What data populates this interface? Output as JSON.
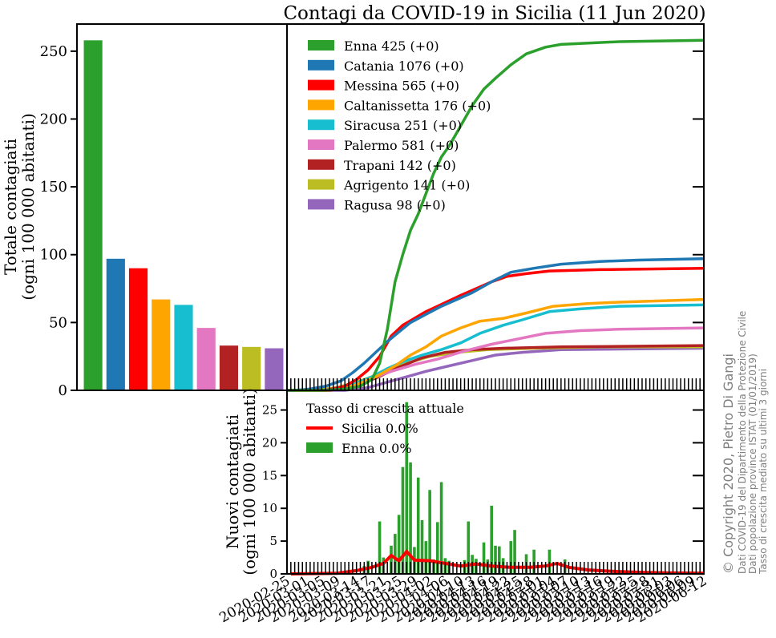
{
  "figure": {
    "title": "Contagi da COVID-19 in Sicilia (11 Jun 2020)",
    "ylabel_total_line1": "Totale contagiati",
    "ylabel_total_line2": "(ogni 100 000 abitanti)",
    "ylabel_new_line1": "Nuovi contagiati",
    "ylabel_new_line2": "(ogni 100 000 abitanti)",
    "rate_legend_title": "Tasso di crescita attuale",
    "copyright": "© Copyright 2020, Pietro Di Gangi",
    "notes": [
      "Dati COVID-19 del Dipartimento della Protezione Civile",
      "Dati popolazione province ISTAT (01/01/2019)",
      "Tasso di crescita mediato su ultimi 3 giorni"
    ]
  },
  "chart_data": [
    {
      "type": "bar",
      "title": "",
      "ylabel": "Totale contagiati (ogni 100 000 abitanti)",
      "ylim": [
        0,
        270
      ],
      "yticks": [
        0,
        50,
        100,
        150,
        200,
        250
      ],
      "categories": [
        "Enna",
        "Catania",
        "Messina",
        "Caltanissetta",
        "Siracusa",
        "Palermo",
        "Trapani",
        "Agrigento",
        "Ragusa"
      ],
      "values": [
        258,
        97,
        90,
        67,
        63,
        46,
        33,
        32,
        31
      ],
      "colors": [
        "#2ca02c",
        "#1f77b4",
        "#ff0000",
        "#ffa500",
        "#17becf",
        "#e377c2",
        "#b22222",
        "#bcbd22",
        "#9467bd"
      ]
    },
    {
      "type": "line",
      "title": "Contagi da COVID-19 in Sicilia (11 Jun 2020)",
      "ylim": [
        0,
        270
      ],
      "legend_position": "upper-left",
      "x_range": [
        "2020-02-24",
        "2020-06-11"
      ],
      "series": [
        {
          "name": "Enna",
          "label": "Enna   425 (+0)",
          "color": "#2ca02c",
          "points": [
            [
              "2020-03-04",
              0
            ],
            [
              "2020-03-10",
              1
            ],
            [
              "2020-03-14",
              3
            ],
            [
              "2020-03-17",
              8
            ],
            [
              "2020-03-19",
              20
            ],
            [
              "2020-03-21",
              45
            ],
            [
              "2020-03-23",
              80
            ],
            [
              "2020-03-25",
              100
            ],
            [
              "2020-03-27",
              118
            ],
            [
              "2020-03-29",
              130
            ],
            [
              "2020-03-31",
              145
            ],
            [
              "2020-04-02",
              160
            ],
            [
              "2020-04-04",
              172
            ],
            [
              "2020-04-06",
              180
            ],
            [
              "2020-04-08",
              190
            ],
            [
              "2020-04-10",
              200
            ],
            [
              "2020-04-12",
              210
            ],
            [
              "2020-04-15",
              222
            ],
            [
              "2020-04-18",
              230
            ],
            [
              "2020-04-22",
              240
            ],
            [
              "2020-04-26",
              248
            ],
            [
              "2020-05-01",
              253
            ],
            [
              "2020-05-05",
              255
            ],
            [
              "2020-05-20",
              257
            ],
            [
              "2020-06-11",
              258
            ]
          ]
        },
        {
          "name": "Catania",
          "label": "Catania   1076 (+0)",
          "color": "#1f77b4",
          "points": [
            [
              "2020-02-26",
              0
            ],
            [
              "2020-03-01",
              1
            ],
            [
              "2020-03-05",
              3
            ],
            [
              "2020-03-09",
              7
            ],
            [
              "2020-03-12",
              13
            ],
            [
              "2020-03-15",
              20
            ],
            [
              "2020-03-18",
              28
            ],
            [
              "2020-03-21",
              36
            ],
            [
              "2020-03-24",
              43
            ],
            [
              "2020-03-27",
              50
            ],
            [
              "2020-03-31",
              56
            ],
            [
              "2020-04-04",
              62
            ],
            [
              "2020-04-08",
              67
            ],
            [
              "2020-04-12",
              72
            ],
            [
              "2020-04-17",
              80
            ],
            [
              "2020-04-22",
              87
            ],
            [
              "2020-04-28",
              90
            ],
            [
              "2020-05-05",
              93
            ],
            [
              "2020-05-15",
              95
            ],
            [
              "2020-05-25",
              96
            ],
            [
              "2020-06-11",
              97
            ]
          ]
        },
        {
          "name": "Messina",
          "label": "Messina   565 (+0)",
          "color": "#ff0000",
          "points": [
            [
              "2020-03-05",
              0
            ],
            [
              "2020-03-10",
              3
            ],
            [
              "2020-03-13",
              8
            ],
            [
              "2020-03-16",
              15
            ],
            [
              "2020-03-19",
              25
            ],
            [
              "2020-03-22",
              40
            ],
            [
              "2020-03-25",
              48
            ],
            [
              "2020-03-28",
              53
            ],
            [
              "2020-03-31",
              58
            ],
            [
              "2020-04-03",
              62
            ],
            [
              "2020-04-06",
              66
            ],
            [
              "2020-04-09",
              70
            ],
            [
              "2020-04-13",
              75
            ],
            [
              "2020-04-17",
              80
            ],
            [
              "2020-04-21",
              84
            ],
            [
              "2020-04-26",
              86
            ],
            [
              "2020-05-02",
              88
            ],
            [
              "2020-05-15",
              89
            ],
            [
              "2020-06-11",
              90
            ]
          ]
        },
        {
          "name": "Caltanissetta",
          "label": "Caltanissetta   176 (+0)",
          "color": "#ffa500",
          "points": [
            [
              "2020-03-05",
              0
            ],
            [
              "2020-03-12",
              3
            ],
            [
              "2020-03-18",
              10
            ],
            [
              "2020-03-23",
              18
            ],
            [
              "2020-03-27",
              26
            ],
            [
              "2020-03-31",
              32
            ],
            [
              "2020-04-04",
              40
            ],
            [
              "2020-04-09",
              46
            ],
            [
              "2020-04-14",
              51
            ],
            [
              "2020-04-20",
              53
            ],
            [
              "2020-04-26",
              57
            ],
            [
              "2020-05-03",
              62
            ],
            [
              "2020-05-12",
              64
            ],
            [
              "2020-05-20",
              65
            ],
            [
              "2020-06-11",
              67
            ]
          ]
        },
        {
          "name": "Siracusa",
          "label": "Siracusa   251 (+0)",
          "color": "#17becf",
          "points": [
            [
              "2020-03-05",
              0
            ],
            [
              "2020-03-12",
              4
            ],
            [
              "2020-03-17",
              10
            ],
            [
              "2020-03-21",
              16
            ],
            [
              "2020-03-25",
              21
            ],
            [
              "2020-03-30",
              26
            ],
            [
              "2020-04-04",
              30
            ],
            [
              "2020-04-09",
              35
            ],
            [
              "2020-04-14",
              42
            ],
            [
              "2020-04-20",
              48
            ],
            [
              "2020-04-25",
              52
            ],
            [
              "2020-05-02",
              58
            ],
            [
              "2020-05-10",
              60
            ],
            [
              "2020-05-20",
              62
            ],
            [
              "2020-06-11",
              63
            ]
          ]
        },
        {
          "name": "Palermo",
          "label": "Palermo   581 (+0)",
          "color": "#e377c2",
          "points": [
            [
              "2020-03-04",
              0
            ],
            [
              "2020-03-10",
              2
            ],
            [
              "2020-03-16",
              8
            ],
            [
              "2020-03-22",
              14
            ],
            [
              "2020-03-28",
              19
            ],
            [
              "2020-04-03",
              23
            ],
            [
              "2020-04-10",
              29
            ],
            [
              "2020-04-17",
              34
            ],
            [
              "2020-04-24",
              38
            ],
            [
              "2020-05-01",
              42
            ],
            [
              "2020-05-10",
              44
            ],
            [
              "2020-05-20",
              45
            ],
            [
              "2020-06-11",
              46
            ]
          ]
        },
        {
          "name": "Trapani",
          "label": "Trapani   142 (+0)",
          "color": "#b22222",
          "points": [
            [
              "2020-03-06",
              0
            ],
            [
              "2020-03-12",
              3
            ],
            [
              "2020-03-18",
              9
            ],
            [
              "2020-03-24",
              17
            ],
            [
              "2020-03-30",
              24
            ],
            [
              "2020-04-05",
              28
            ],
            [
              "2020-04-12",
              30
            ],
            [
              "2020-04-20",
              31
            ],
            [
              "2020-05-05",
              32
            ],
            [
              "2020-06-11",
              33
            ]
          ]
        },
        {
          "name": "Agrigento",
          "label": "Agrigento   141 (+0)",
          "color": "#bcbd22",
          "points": [
            [
              "2020-03-02",
              0
            ],
            [
              "2020-03-08",
              2
            ],
            [
              "2020-03-14",
              7
            ],
            [
              "2020-03-20",
              13
            ],
            [
              "2020-03-26",
              20
            ],
            [
              "2020-04-01",
              25
            ],
            [
              "2020-04-08",
              28
            ],
            [
              "2020-04-16",
              30
            ],
            [
              "2020-04-28",
              31
            ],
            [
              "2020-05-15",
              32
            ],
            [
              "2020-06-11",
              32
            ]
          ]
        },
        {
          "name": "Ragusa",
          "label": "Ragusa   98 (+0)",
          "color": "#9467bd",
          "points": [
            [
              "2020-03-10",
              0
            ],
            [
              "2020-03-16",
              2
            ],
            [
              "2020-03-21",
              6
            ],
            [
              "2020-03-26",
              10
            ],
            [
              "2020-03-31",
              14
            ],
            [
              "2020-04-06",
              18
            ],
            [
              "2020-04-12",
              22
            ],
            [
              "2020-04-18",
              26
            ],
            [
              "2020-04-25",
              28
            ],
            [
              "2020-05-05",
              30
            ],
            [
              "2020-06-11",
              31
            ]
          ]
        }
      ]
    },
    {
      "type": "bar",
      "title": "",
      "ylabel": "Nuovi contagiati (ogni 100 000 abitanti)",
      "ylim": [
        0,
        28
      ],
      "yticks": [
        0,
        5,
        10,
        15,
        20,
        25
      ],
      "x_start": "2020-02-25",
      "bar_name": "Enna",
      "bar_label": "Enna   0.0%",
      "bar_color": "#2ca02c",
      "values": [
        0,
        0,
        0,
        0,
        0,
        0,
        0,
        0,
        0,
        0,
        0,
        0,
        0,
        0,
        0,
        0,
        0,
        0,
        0,
        1.2,
        2.0,
        0,
        0,
        8.0,
        2.5,
        0,
        4.3,
        6.1,
        9.0,
        16.3,
        26.2,
        17.0,
        4.1,
        14.7,
        8.2,
        5.0,
        12.8,
        2.2,
        7.9,
        14.0,
        2.4,
        2.0,
        0,
        0,
        0,
        2.1,
        8.0,
        2.9,
        2.3,
        0,
        4.8,
        2.2,
        10.4,
        4.3,
        4.2,
        2.4,
        0,
        5.0,
        6.7,
        0,
        0,
        3.0,
        0,
        3.7,
        0,
        0,
        0,
        3.7,
        0,
        0,
        0,
        2.2,
        0,
        0,
        0,
        0,
        0,
        0,
        0,
        0,
        0,
        0,
        0,
        0,
        0,
        0,
        0,
        0,
        0,
        0,
        0,
        0,
        0,
        0,
        0,
        0,
        0,
        0,
        0,
        0,
        0,
        0,
        0,
        0,
        0,
        0,
        0,
        0
      ],
      "line_name": "Sicilia",
      "line_label": "Sicilia   0.0%",
      "line_color": "#ff0000",
      "line_points": [
        [
          "2020-02-25",
          0
        ],
        [
          "2020-03-08",
          0.1
        ],
        [
          "2020-03-13",
          0.5
        ],
        [
          "2020-03-17",
          1.0
        ],
        [
          "2020-03-20",
          1.6
        ],
        [
          "2020-03-22",
          2.8
        ],
        [
          "2020-03-24",
          2.0
        ],
        [
          "2020-03-26",
          3.4
        ],
        [
          "2020-03-28",
          2.1
        ],
        [
          "2020-04-01",
          2.0
        ],
        [
          "2020-04-05",
          1.6
        ],
        [
          "2020-04-09",
          1.2
        ],
        [
          "2020-04-13",
          1.5
        ],
        [
          "2020-04-17",
          1.2
        ],
        [
          "2020-04-22",
          1.0
        ],
        [
          "2020-04-27",
          1.0
        ],
        [
          "2020-05-01",
          1.2
        ],
        [
          "2020-05-04",
          1.6
        ],
        [
          "2020-05-07",
          1.0
        ],
        [
          "2020-05-12",
          0.6
        ],
        [
          "2020-05-18",
          0.4
        ],
        [
          "2020-05-25",
          0.25
        ],
        [
          "2020-06-01",
          0.15
        ],
        [
          "2020-06-11",
          0.1
        ]
      ]
    }
  ],
  "x_tick_labels": [
    "2020-02-25",
    "2020-03-01",
    "2020-03-05",
    "2020-03-09",
    "2020-03-14",
    "2020-03-17",
    "2020-03-21",
    "2020-03-25",
    "2020-03-29",
    "2020-04-02",
    "2020-04-06",
    "2020-04-10",
    "2020-04-13",
    "2020-04-16",
    "2020-04-19",
    "2020-04-22",
    "2020-04-25",
    "2020-04-28",
    "2020-05-01",
    "2020-05-04",
    "2020-05-07",
    "2020-05-10",
    "2020-05-13",
    "2020-05-16",
    "2020-05-19",
    "2020-05-22",
    "2020-05-25",
    "2020-05-28",
    "2020-05-31",
    "2020-06-03",
    "2020-06-06",
    "2020-06-09",
    "2020-06-12"
  ]
}
